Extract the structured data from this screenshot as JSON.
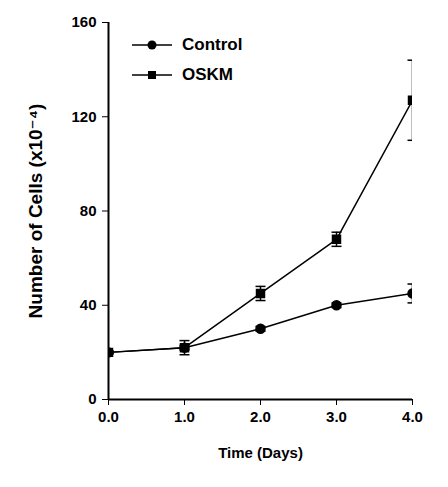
{
  "chart_data": {
    "type": "line",
    "x_label": "Time (Days)",
    "y_label": "Number of Cells (x10⁻⁴)",
    "x": [
      0,
      1,
      2,
      3,
      4
    ],
    "xlim": [
      0,
      4
    ],
    "xticks": [
      0,
      1,
      2,
      3,
      4
    ],
    "ylim": [
      0,
      160
    ],
    "yticks": [
      0,
      40,
      80,
      120,
      160
    ],
    "legend": "top-left",
    "series": [
      {
        "name": "Control",
        "color": "#000000",
        "marker": "circle",
        "line_style": "solid",
        "values": [
          20,
          22,
          30,
          40,
          45
        ],
        "errors": [
          0.5,
          1,
          1,
          1,
          4
        ]
      },
      {
        "name": "OSKM",
        "color": "#000000",
        "marker": "square",
        "line_style": "solid",
        "values": [
          20,
          22,
          45,
          68,
          127
        ],
        "errors": [
          0.5,
          3,
          3,
          3,
          17
        ]
      }
    ]
  }
}
